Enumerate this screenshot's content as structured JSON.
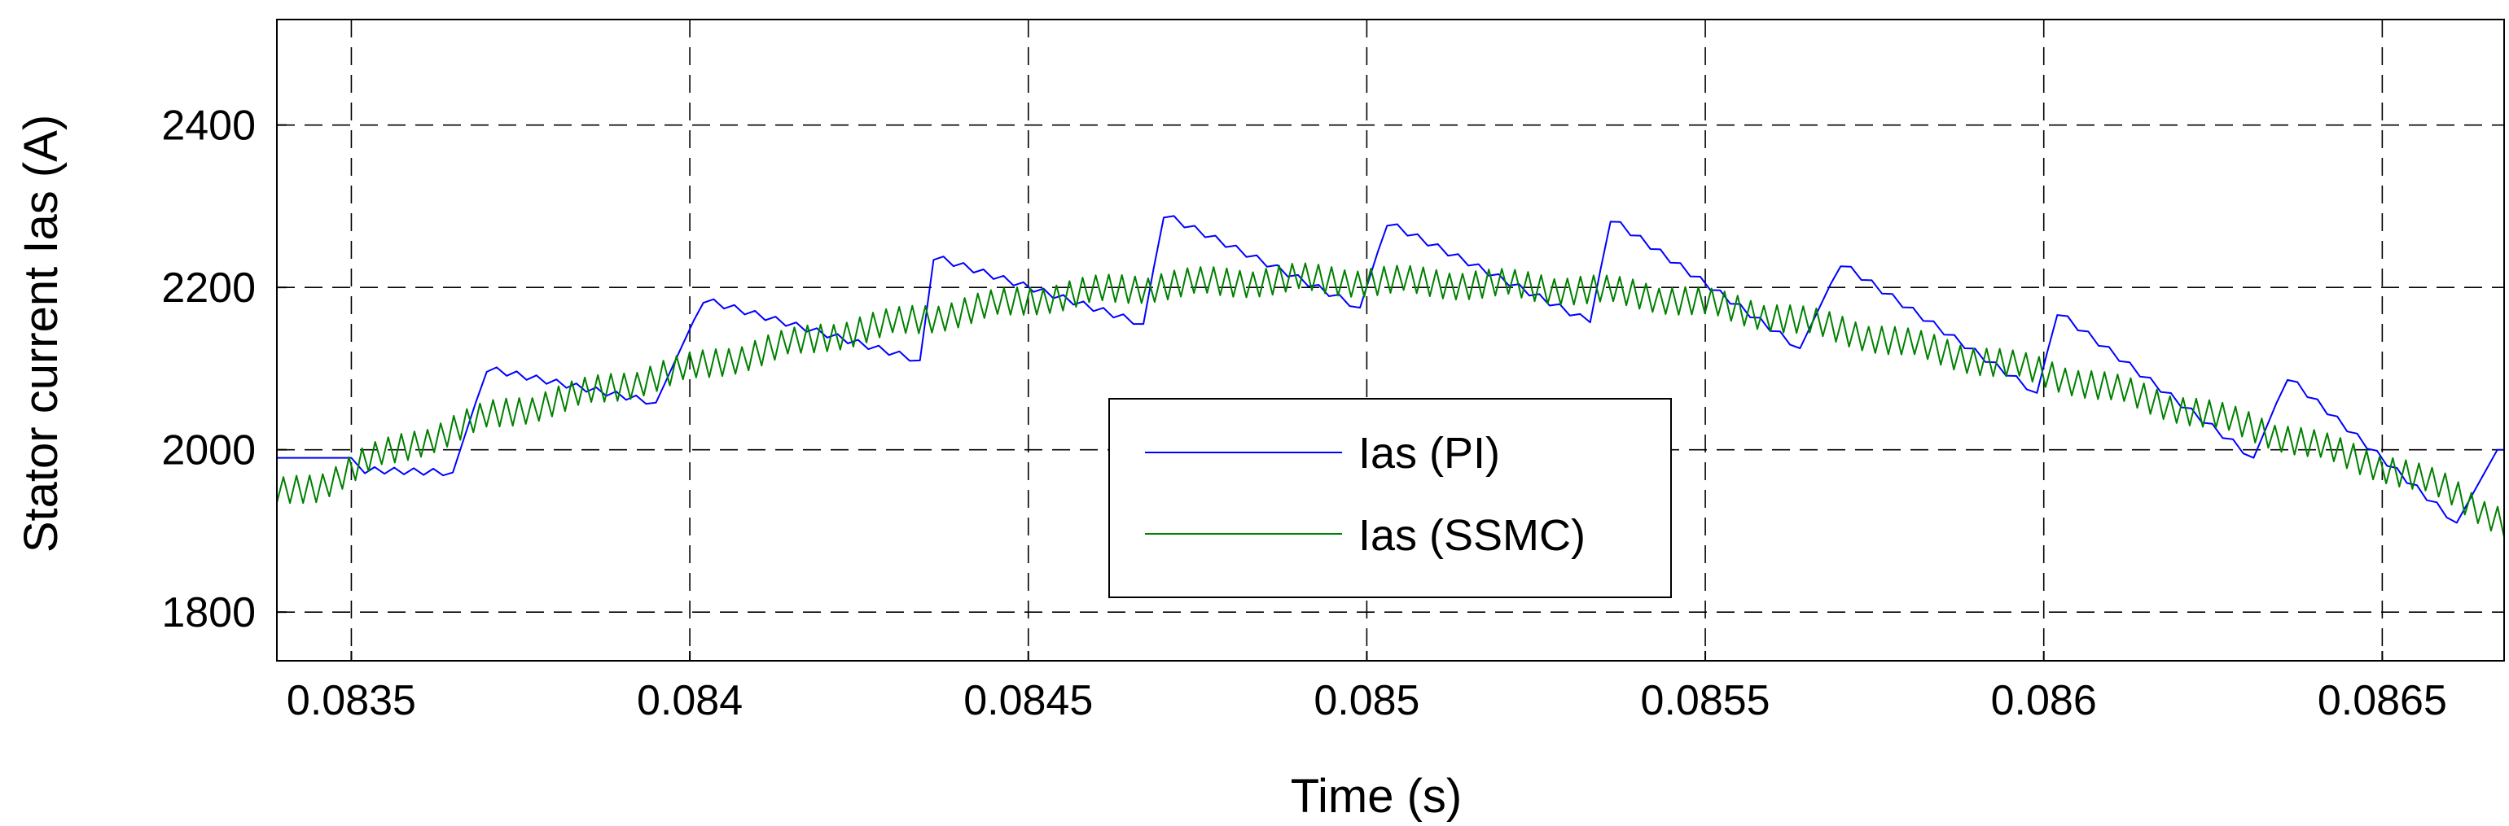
{
  "chart_data": {
    "type": "line",
    "title": "",
    "xlabel": "Time (s)",
    "ylabel": "Stator current Ias (A)",
    "xlim": [
      0.08339,
      0.08668
    ],
    "ylim": [
      1740,
      2530
    ],
    "grid": true,
    "xticks": [
      0.0835,
      0.084,
      0.0845,
      0.085,
      0.0855,
      0.086,
      0.0865
    ],
    "xtick_labels": [
      "0.0835",
      "0.084",
      "0.0845",
      "0.085",
      "0.0855",
      "0.086",
      "0.0865"
    ],
    "yticks": [
      1800,
      2000,
      2200,
      2400
    ],
    "ytick_labels": [
      "1800",
      "2000",
      "2200",
      "2400"
    ],
    "legend_position": "center",
    "series": [
      {
        "name": "Ias (PI)",
        "color": "#0000ff",
        "points": [
          [
            0.08339,
            1990
          ],
          [
            0.0835,
            1990
          ],
          [
            0.08352,
            1975
          ],
          [
            0.08365,
            1972
          ],
          [
            0.0837,
            2100
          ],
          [
            0.08395,
            2058
          ],
          [
            0.08402,
            2185
          ],
          [
            0.08434,
            2110
          ],
          [
            0.08436,
            2238
          ],
          [
            0.08467,
            2155
          ],
          [
            0.0847,
            2290
          ],
          [
            0.08499,
            2175
          ],
          [
            0.08503,
            2280
          ],
          [
            0.08533,
            2157
          ],
          [
            0.08536,
            2285
          ],
          [
            0.08564,
            2125
          ],
          [
            0.0857,
            2230
          ],
          [
            0.08599,
            2070
          ],
          [
            0.08602,
            2170
          ],
          [
            0.08631,
            1990
          ],
          [
            0.08636,
            2090
          ],
          [
            0.08661,
            1910
          ],
          [
            0.08667,
            2000
          ],
          [
            0.08668,
            2000
          ]
        ]
      },
      {
        "name": "Ias (SSMC)",
        "color": "#008000",
        "points": [
          [
            0.08339,
            1945
          ],
          [
            0.08345,
            1955
          ],
          [
            0.08352,
            1985
          ],
          [
            0.0836,
            2010
          ],
          [
            0.0837,
            2040
          ],
          [
            0.0838,
            2060
          ],
          [
            0.0839,
            2080
          ],
          [
            0.084,
            2100
          ],
          [
            0.0841,
            2120
          ],
          [
            0.0842,
            2140
          ],
          [
            0.0843,
            2155
          ],
          [
            0.0844,
            2170
          ],
          [
            0.0845,
            2185
          ],
          [
            0.0846,
            2195
          ],
          [
            0.0847,
            2203
          ],
          [
            0.0848,
            2207
          ],
          [
            0.0849,
            2210
          ],
          [
            0.085,
            2208
          ],
          [
            0.0851,
            2206
          ],
          [
            0.0852,
            2203
          ],
          [
            0.0853,
            2198
          ],
          [
            0.0854,
            2192
          ],
          [
            0.0855,
            2180
          ],
          [
            0.0856,
            2165
          ],
          [
            0.0857,
            2148
          ],
          [
            0.0858,
            2130
          ],
          [
            0.0859,
            2112
          ],
          [
            0.086,
            2095
          ],
          [
            0.0861,
            2075
          ],
          [
            0.0862,
            2052
          ],
          [
            0.0863,
            2030
          ],
          [
            0.0864,
            2005
          ],
          [
            0.0865,
            1980
          ],
          [
            0.0866,
            1950
          ],
          [
            0.08668,
            1910
          ]
        ],
        "ripple_amplitude": 20
      }
    ]
  }
}
